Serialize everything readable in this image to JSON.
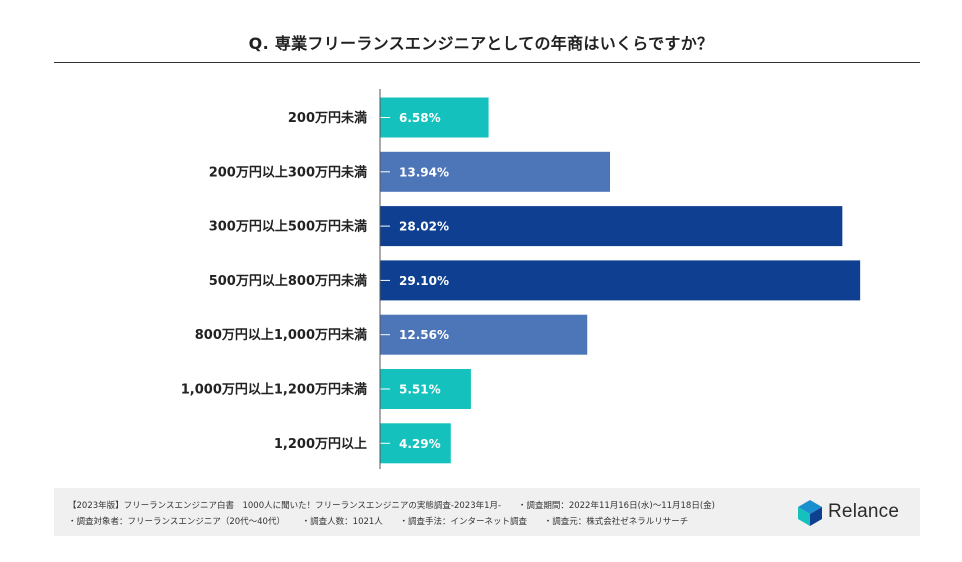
{
  "title": "Q. 専業フリーランスエンジニアとしての年商はいくらですか？",
  "chart_data": {
    "type": "bar",
    "orientation": "horizontal",
    "categories": [
      "200万円未満",
      "200万円以上300万円未満",
      "300万円以上500万円未満",
      "500万円以上800万円未満",
      "800万円以上1,000万円未満",
      "1,000万円以上1,200万円未満",
      "1,200万円以上"
    ],
    "values": [
      6.58,
      13.94,
      28.02,
      29.1,
      12.56,
      5.51,
      4.29
    ],
    "value_labels": [
      "6.58%",
      "13.94%",
      "28.02%",
      "29.10%",
      "12.56%",
      "5.51%",
      "4.29%"
    ],
    "colors": [
      "#14c1bd",
      "#4d76b8",
      "#0e3f91",
      "#0e3f91",
      "#4d76b8",
      "#14c1bd",
      "#14c1bd"
    ],
    "xlim": [
      0,
      30
    ],
    "grid": false,
    "legend": "none"
  },
  "footer": {
    "line1": [
      "【2023年版】フリーランスエンジニア白書　1000人に聞いた！フリーランスエンジニアの実態調査-2023年1月-",
      "・調査期間：2022年11月16日(水)〜11月18日(金)"
    ],
    "line2": [
      "・調査対象者：フリーランスエンジニア（20代〜40代）",
      "・調査人数：1021人",
      "・調査手法：インターネット調査",
      "・調査元：株式会社ゼネラルリサーチ"
    ]
  },
  "logo": {
    "name": "Relance",
    "colors": [
      "#1a8fd0",
      "#14c1bd",
      "#0e3f91"
    ]
  }
}
